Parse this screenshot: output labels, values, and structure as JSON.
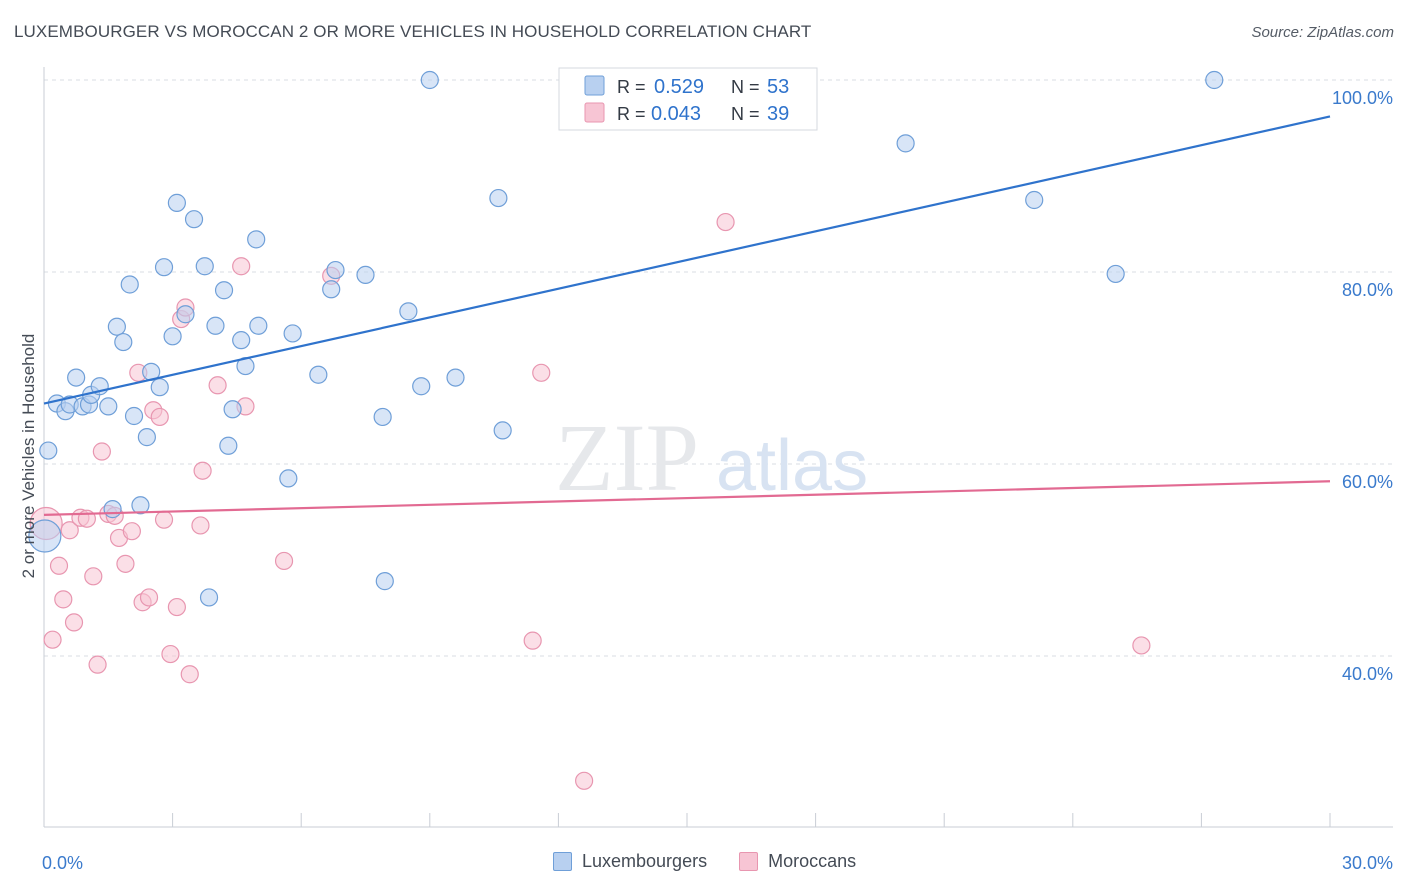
{
  "title": "LUXEMBOURGER VS MOROCCAN 2 OR MORE VEHICLES IN HOUSEHOLD CORRELATION CHART",
  "source": "Source: ZipAtlas.com",
  "watermark": {
    "zip": "ZIP",
    "atlas": "atlas"
  },
  "colors": {
    "blue_fill": "#b8d0f0",
    "blue_stroke": "#6f9fd8",
    "blue_line": "#2f73cc",
    "pink_fill": "#f7c5d4",
    "pink_stroke": "#e896b0",
    "pink_line": "#e26a92",
    "tick_label": "#3a7acc",
    "grid": "#d9dde3",
    "axis_label": "#444b55"
  },
  "legend": {
    "rows": [
      {
        "r_label": "R = ",
        "r_value": "0.529",
        "n_label": "N = ",
        "n_value": "53",
        "series": "blue"
      },
      {
        "r_label": "R = ",
        "r_value": "0.043",
        "n_label": "N = ",
        "n_value": "39",
        "series": "pink"
      }
    ]
  },
  "chart_data": {
    "type": "scatter",
    "title": "LUXEMBOURGER VS MOROCCAN 2 OR MORE VEHICLES IN HOUSEHOLD CORRELATION CHART",
    "xlabel": "",
    "ylabel": "2 or more Vehicles in Household",
    "xlim": [
      0,
      30
    ],
    "ylim": [
      20,
      102
    ],
    "x_ticks": [
      0,
      30
    ],
    "x_tick_labels": [
      "0.0%",
      "30.0%"
    ],
    "y_ticks": [
      40,
      60,
      80,
      100
    ],
    "y_tick_labels": [
      "40.0%",
      "60.0%",
      "80.0%",
      "100.0%"
    ],
    "grid": true,
    "legend_position": "top-center",
    "series": [
      {
        "name": "Luxembourgers",
        "color": "blue",
        "r": 0.529,
        "n": 53,
        "trend": {
          "x": [
            0,
            30
          ],
          "y": [
            66.3,
            96.2
          ]
        },
        "points": [
          [
            0.02,
            52.5
          ],
          [
            0.1,
            61.4
          ],
          [
            0.3,
            66.3
          ],
          [
            0.5,
            65.5
          ],
          [
            0.6,
            66.2
          ],
          [
            0.75,
            69.0
          ],
          [
            0.9,
            66.0
          ],
          [
            1.05,
            66.2
          ],
          [
            1.1,
            67.2
          ],
          [
            1.3,
            68.1
          ],
          [
            1.5,
            66.0
          ],
          [
            1.6,
            55.3
          ],
          [
            1.7,
            74.3
          ],
          [
            1.85,
            72.7
          ],
          [
            2.0,
            78.7
          ],
          [
            2.1,
            65.0
          ],
          [
            2.25,
            55.7
          ],
          [
            2.4,
            62.8
          ],
          [
            2.5,
            69.6
          ],
          [
            2.7,
            68.0
          ],
          [
            2.8,
            80.5
          ],
          [
            3.0,
            73.3
          ],
          [
            3.1,
            87.2
          ],
          [
            3.3,
            75.6
          ],
          [
            3.5,
            85.5
          ],
          [
            3.75,
            80.6
          ],
          [
            3.85,
            46.1
          ],
          [
            4.0,
            74.4
          ],
          [
            4.2,
            78.1
          ],
          [
            4.3,
            61.9
          ],
          [
            4.4,
            65.7
          ],
          [
            4.6,
            72.9
          ],
          [
            4.7,
            70.2
          ],
          [
            4.95,
            83.4
          ],
          [
            5.0,
            74.4
          ],
          [
            5.7,
            58.5
          ],
          [
            5.8,
            73.6
          ],
          [
            6.4,
            69.3
          ],
          [
            6.7,
            78.2
          ],
          [
            6.8,
            80.2
          ],
          [
            7.5,
            79.7
          ],
          [
            7.9,
            64.9
          ],
          [
            7.95,
            47.8
          ],
          [
            8.5,
            75.9
          ],
          [
            8.8,
            68.1
          ],
          [
            9.0,
            100.0
          ],
          [
            9.6,
            69.0
          ],
          [
            10.6,
            87.7
          ],
          [
            10.7,
            63.5
          ],
          [
            20.1,
            93.4
          ],
          [
            23.1,
            87.5
          ],
          [
            25.0,
            79.8
          ],
          [
            27.3,
            100.0
          ]
        ]
      },
      {
        "name": "Moroccans",
        "color": "pink",
        "r": 0.043,
        "n": 39,
        "trend": {
          "x": [
            0,
            30
          ],
          "y": [
            54.7,
            58.2
          ]
        },
        "points": [
          [
            0.05,
            53.8
          ],
          [
            0.2,
            41.7
          ],
          [
            0.35,
            49.4
          ],
          [
            0.45,
            45.9
          ],
          [
            0.6,
            53.1
          ],
          [
            0.7,
            43.5
          ],
          [
            0.85,
            54.4
          ],
          [
            1.0,
            54.3
          ],
          [
            1.15,
            48.3
          ],
          [
            1.25,
            39.1
          ],
          [
            1.35,
            61.3
          ],
          [
            1.5,
            54.8
          ],
          [
            1.65,
            54.6
          ],
          [
            1.75,
            52.3
          ],
          [
            1.9,
            49.6
          ],
          [
            2.05,
            53.0
          ],
          [
            2.2,
            69.5
          ],
          [
            2.3,
            45.6
          ],
          [
            2.45,
            46.1
          ],
          [
            2.55,
            65.6
          ],
          [
            2.7,
            64.9
          ],
          [
            2.8,
            54.2
          ],
          [
            2.95,
            40.2
          ],
          [
            3.1,
            45.1
          ],
          [
            3.2,
            75.1
          ],
          [
            3.3,
            76.3
          ],
          [
            3.4,
            38.1
          ],
          [
            3.7,
            59.3
          ],
          [
            3.65,
            53.6
          ],
          [
            4.05,
            68.2
          ],
          [
            4.6,
            80.6
          ],
          [
            4.7,
            66.0
          ],
          [
            5.6,
            49.9
          ],
          [
            6.7,
            79.6
          ],
          [
            11.4,
            41.6
          ],
          [
            11.6,
            69.5
          ],
          [
            12.6,
            27.0
          ],
          [
            15.9,
            85.2
          ],
          [
            25.6,
            41.1
          ]
        ]
      }
    ]
  }
}
